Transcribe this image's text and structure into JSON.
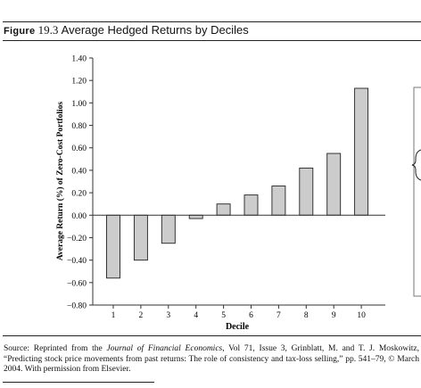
{
  "figure": {
    "label": "Figure",
    "number": "19.3",
    "title": "Average Hedged Returns by Deciles"
  },
  "chart_data": {
    "type": "bar",
    "categories": [
      "1",
      "2",
      "3",
      "4",
      "5",
      "6",
      "7",
      "8",
      "9",
      "10"
    ],
    "values": [
      -0.56,
      -0.4,
      -0.25,
      -0.03,
      0.1,
      0.18,
      0.26,
      0.42,
      0.55,
      1.13
    ],
    "ylim": [
      -0.8,
      1.4
    ],
    "yticks": [
      "1.40",
      "1.20",
      "1.00",
      "0.80",
      "0.60",
      "0.40",
      "0.20",
      "0.00",
      "−0.20",
      "−0.40",
      "−0.60",
      "−0.80"
    ],
    "ytick_values": [
      1.4,
      1.2,
      1.0,
      0.8,
      0.6,
      0.4,
      0.2,
      0.0,
      -0.2,
      -0.4,
      -0.6,
      -0.8
    ],
    "xlabel": "Decile",
    "ylabel": "Average Return (%) of Zero-Cost Portfolios",
    "bar_color": "#cccccc",
    "grid": false
  },
  "source": {
    "prefix": "Source: Reprinted from the ",
    "journal": "Journal of Financial Economics",
    "suffix": ", Vol 71, Issue 3, Grinblatt, M. and T. J. Moskowitz, “Predicting stock price movements from past returns: The role of consistency and tax-loss selling,” pp. 541–79, © March 2004. With permission from Elsevier."
  }
}
